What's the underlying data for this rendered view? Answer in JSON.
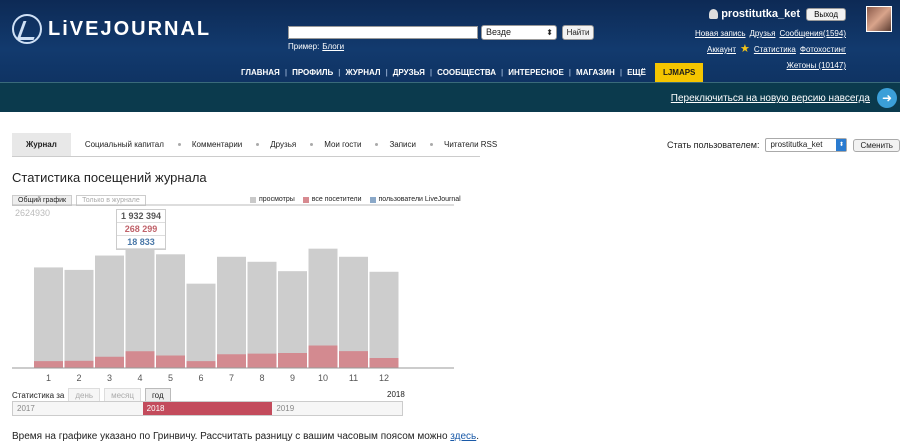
{
  "header": {
    "logo_text": "LiVEJOURNAL",
    "search": {
      "value": "",
      "scope": "Везде",
      "button": "Найти"
    },
    "example_label": "Пример:",
    "example_link": "Блоги",
    "user": {
      "username": "prostitutka_ket",
      "logout": "Выход",
      "links_row1": [
        "Новая запись",
        "Друзья",
        "Сообщения(1594)"
      ],
      "links_row2": [
        "Аккаунт",
        "Статистика",
        "Фотохостинг"
      ],
      "tokens": "Жетоны (10147)"
    },
    "nav": [
      "ГЛАВНАЯ",
      "ПРОФИЛЬ",
      "ЖУРНАЛ",
      "ДРУЗЬЯ",
      "СООБЩЕСТВА",
      "ИНТЕРЕСНОЕ",
      "МАГАЗИН",
      "ЕЩЁ"
    ],
    "ljmaps": "LJMAPS",
    "switch_link": "Переключиться на новую версию навсегда"
  },
  "tabs": [
    "Журнал",
    "Социальный капитал",
    "Комментарии",
    "Друзья",
    "Мои гости",
    "Записи",
    "Читатели RSS"
  ],
  "become": {
    "label": "Стать пользователем:",
    "value": "prostitutka_ket",
    "button": "Сменить"
  },
  "page_title": "Статистика посещений журнала",
  "chart_tabs": [
    "Общий график",
    "Только в журнале"
  ],
  "legend": [
    {
      "label": "просмотры",
      "color": "#c9c9c9"
    },
    {
      "label": "все посетители",
      "color": "#d78a90"
    },
    {
      "label": "пользователи LiveJournal",
      "color": "#8aa8c8"
    }
  ],
  "tooltip": {
    "views": "1 932 394",
    "visitors": "268 299",
    "lj_users": "18 833"
  },
  "chart_data": {
    "type": "bar",
    "categories": [
      "1",
      "2",
      "3",
      "4",
      "5",
      "6",
      "7",
      "8",
      "9",
      "10",
      "11",
      "12"
    ],
    "ymax_label": "2624930",
    "ylim": [
      0,
      2624930
    ],
    "series": [
      {
        "name": "просмотры",
        "values": [
          1610000,
          1570000,
          1800000,
          1932394,
          1820000,
          1350000,
          1780000,
          1700000,
          1550000,
          1910000,
          1780000,
          1540000
        ]
      },
      {
        "name": "все посетители",
        "values": [
          110000,
          115000,
          180000,
          268299,
          200000,
          110000,
          220000,
          230000,
          240000,
          360000,
          270000,
          160000
        ]
      }
    ]
  },
  "period": {
    "label": "Статистика за",
    "options": [
      "день",
      "месяц",
      "год"
    ],
    "active": "год",
    "year_label": "2018"
  },
  "years": [
    "2017",
    "2018",
    "2019"
  ],
  "active_year": "2018",
  "footnote": {
    "text": "Время на графике указано по Гринвичу. Рассчитать разницу с вашим часовым поясом можно ",
    "link": "здесь",
    "end": "."
  }
}
